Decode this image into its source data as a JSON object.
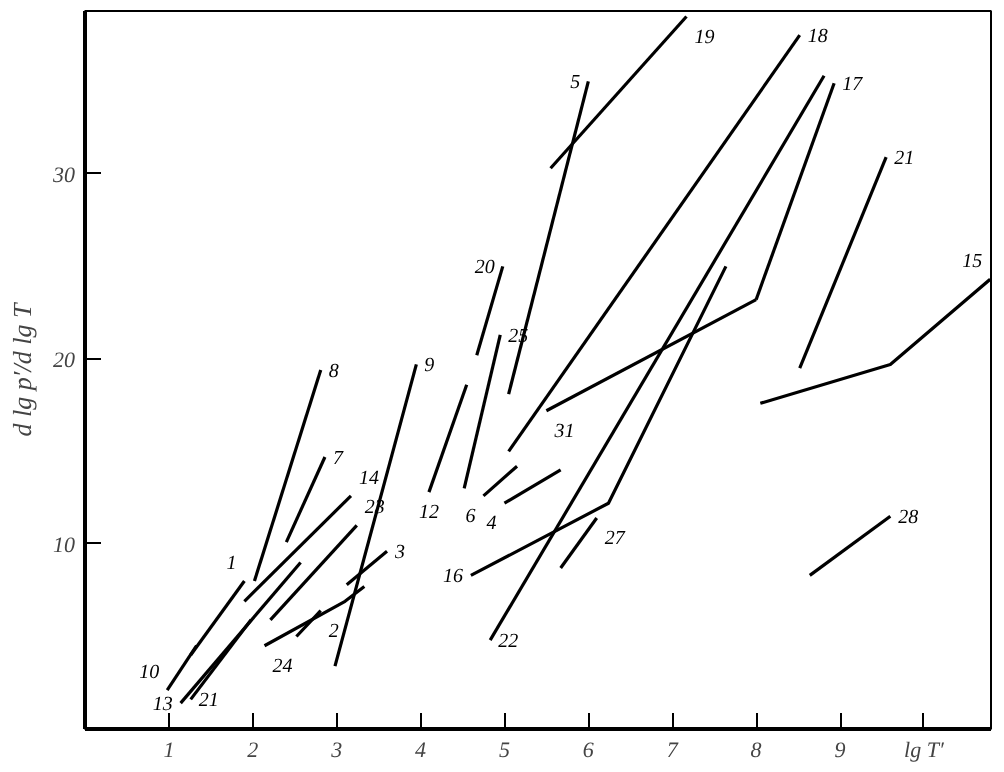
{
  "chart_data": {
    "type": "line",
    "ylabel": "d lg p′/d lg T",
    "xlim": [
      0,
      10.8
    ],
    "ylim": [
      0,
      38.8
    ],
    "xticks": [
      1,
      2,
      3,
      4,
      5,
      6,
      7,
      8,
      9,
      {
        "value": 10,
        "label": "lg T′"
      }
    ],
    "yticks": [
      10,
      20,
      30
    ],
    "grid": false,
    "marker": "none",
    "line_style": "solid",
    "series": [
      {
        "name": "1",
        "color": "#000000",
        "x": [
          1.26,
          1.9
        ],
        "values": [
          4.0,
          8.0
        ]
      },
      {
        "name": "8",
        "color": "#000000",
        "x": [
          2.02,
          2.81
        ],
        "values": [
          8.0,
          19.4
        ]
      },
      {
        "name": "7",
        "color": "#000000",
        "x": [
          2.4,
          2.86
        ],
        "values": [
          10.1,
          14.7
        ]
      },
      {
        "name": "14",
        "color": "#000000",
        "x": [
          1.9,
          3.17
        ],
        "values": [
          6.9,
          12.6
        ]
      },
      {
        "name": "23",
        "color": "#000000",
        "x": [
          2.21,
          3.24
        ],
        "values": [
          5.9,
          11.0
        ]
      },
      {
        "name": "13",
        "color": "#000000",
        "x": [
          1.14,
          2.57
        ],
        "values": [
          1.4,
          9.0
        ]
      },
      {
        "name": "24",
        "color": "#000000",
        "x": [
          2.14,
          3.1,
          3.33
        ],
        "values": [
          4.5,
          6.9,
          7.7
        ]
      },
      {
        "name": "2",
        "color": "#000000",
        "x": [
          2.52,
          2.81
        ],
        "values": [
          5.0,
          6.4
        ]
      },
      {
        "name": "3",
        "color": "#000000",
        "x": [
          3.12,
          3.6
        ],
        "values": [
          7.8,
          9.6
        ]
      },
      {
        "name": "9",
        "color": "#000000",
        "x": [
          2.98,
          3.95
        ],
        "values": [
          3.4,
          19.7
        ]
      },
      {
        "name": "12",
        "color": "#000000",
        "x": [
          4.1,
          4.55
        ],
        "values": [
          12.8,
          18.6
        ]
      },
      {
        "name": "25",
        "color": "#000000",
        "x": [
          4.52,
          4.95
        ],
        "values": [
          13.0,
          21.3
        ]
      },
      {
        "name": "20",
        "color": "#000000",
        "x": [
          4.67,
          4.98
        ],
        "values": [
          20.2,
          25.0
        ]
      },
      {
        "name": "5",
        "color": "#000000",
        "x": [
          5.05,
          6.0
        ],
        "values": [
          18.1,
          35.0
        ]
      },
      {
        "name": "19",
        "color": "#000000",
        "x": [
          5.55,
          7.17
        ],
        "values": [
          30.3,
          38.5
        ]
      },
      {
        "name": "18",
        "color": "#000000",
        "x": [
          5.05,
          8.52
        ],
        "values": [
          15.0,
          37.5
        ]
      },
      {
        "name": "22",
        "color": "#000000",
        "x": [
          4.83,
          8.81
        ],
        "values": [
          4.8,
          35.3
        ]
      },
      {
        "name": "31",
        "color": "#000000",
        "x": [
          5.5,
          8.0
        ],
        "values": [
          17.2,
          23.2
        ]
      },
      {
        "name": "17",
        "color": "#000000",
        "x": [
          8.0,
          8.93
        ],
        "values": [
          23.2,
          34.9
        ]
      },
      {
        "name": "16",
        "color": "#000000",
        "x": [
          4.6,
          6.24,
          7.64
        ],
        "values": [
          8.3,
          12.2,
          25.0
        ]
      },
      {
        "name": "27",
        "color": "#000000",
        "x": [
          5.67,
          6.1
        ],
        "values": [
          8.7,
          11.4
        ]
      },
      {
        "name": "4",
        "color": "#000000",
        "x": [
          5.0,
          5.67
        ],
        "values": [
          12.2,
          14.0
        ]
      },
      {
        "name": "6",
        "color": "#000000",
        "x": [
          4.75,
          5.15
        ],
        "values": [
          12.6,
          14.2
        ]
      },
      {
        "name": "15",
        "color": "#000000",
        "x": [
          8.05,
          9.6,
          10.79
        ],
        "values": [
          17.6,
          19.7,
          24.3
        ]
      },
      {
        "name": "21",
        "color": "#000000",
        "x": [
          8.52,
          9.55
        ],
        "values": [
          19.5,
          30.9
        ]
      },
      {
        "name": "28",
        "color": "#000000",
        "x": [
          8.64,
          9.6
        ],
        "values": [
          8.3,
          11.5
        ]
      },
      {
        "name": "10",
        "color": "#000000",
        "x": [
          0.98,
          1.33
        ],
        "values": [
          2.1,
          4.5
        ]
      },
      {
        "name": "21",
        "color": "#000000",
        "x": [
          1.26,
          1.98
        ],
        "values": [
          1.6,
          5.9
        ]
      }
    ]
  }
}
